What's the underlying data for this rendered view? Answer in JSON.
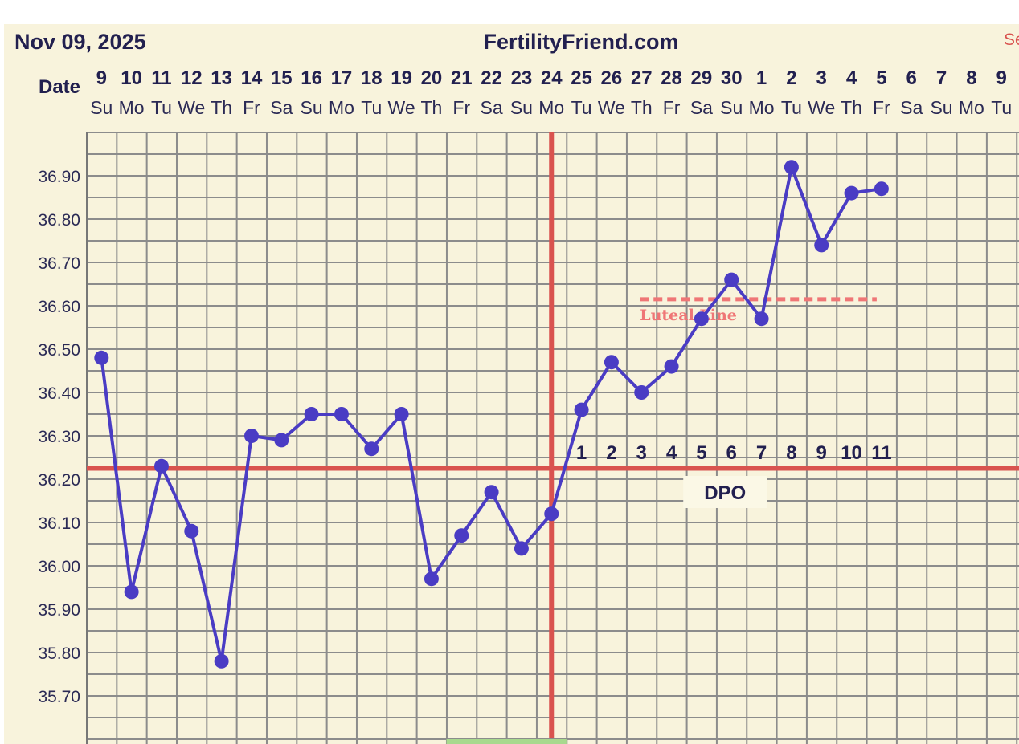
{
  "header": {
    "date_label": "Nov 09, 2025",
    "site": "FertilityFriend.com",
    "edge_text": "Se",
    "row_label": "Date"
  },
  "colors": {
    "background": "#f8f3dc",
    "grid": "#8c8c8c",
    "series": "#4a3cc4",
    "coverline": "#d9534f",
    "luteal": "#ef7676",
    "fertile_band": "#a8d98e",
    "text": "#22204f"
  },
  "chart_data": {
    "type": "line",
    "x_day_numbers": [
      "9",
      "10",
      "11",
      "12",
      "13",
      "14",
      "15",
      "16",
      "17",
      "18",
      "19",
      "20",
      "21",
      "22",
      "23",
      "24",
      "25",
      "26",
      "27",
      "28",
      "29",
      "30",
      "1",
      "2",
      "3",
      "4",
      "5",
      "6",
      "7",
      "8",
      "9"
    ],
    "x_day_names": [
      "Su",
      "Mo",
      "Tu",
      "We",
      "Th",
      "Fr",
      "Sa",
      "Su",
      "Mo",
      "Tu",
      "We",
      "Th",
      "Fr",
      "Sa",
      "Su",
      "Mo",
      "Tu",
      "We",
      "Th",
      "Fr",
      "Sa",
      "Su",
      "Mo",
      "Tu",
      "We",
      "Th",
      "Fr",
      "Sa",
      "Su",
      "Mo",
      "Tu"
    ],
    "y_ticks": [
      "36.90",
      "36.80",
      "36.70",
      "36.60",
      "36.50",
      "36.40",
      "36.30",
      "36.20",
      "36.10",
      "36.00",
      "35.90",
      "35.80",
      "35.70"
    ],
    "ylim": [
      35.6,
      37.0
    ],
    "grid": true,
    "series": [
      {
        "values": [
          36.48,
          35.94,
          36.23,
          36.08,
          35.78,
          36.3,
          36.29,
          36.35,
          36.35,
          36.27,
          36.35,
          35.97,
          36.07,
          36.17,
          36.04,
          36.12,
          36.36,
          36.47,
          36.4,
          36.46,
          36.57,
          36.66,
          36.57,
          36.92,
          36.74,
          36.86,
          36.87
        ]
      }
    ],
    "ovulation_day_index": 15,
    "coverline_value": 36.225,
    "luteal_line": {
      "label": "Luteal Line",
      "value": 36.615,
      "from_index": 18,
      "to_index": 26
    },
    "dpo_numbers": [
      "1",
      "2",
      "3",
      "4",
      "5",
      "6",
      "7",
      "8",
      "9",
      "10",
      "11"
    ],
    "dpo_start_index": 16,
    "dpo_label": "DPO",
    "fertile_band_indices": [
      12,
      15
    ]
  }
}
